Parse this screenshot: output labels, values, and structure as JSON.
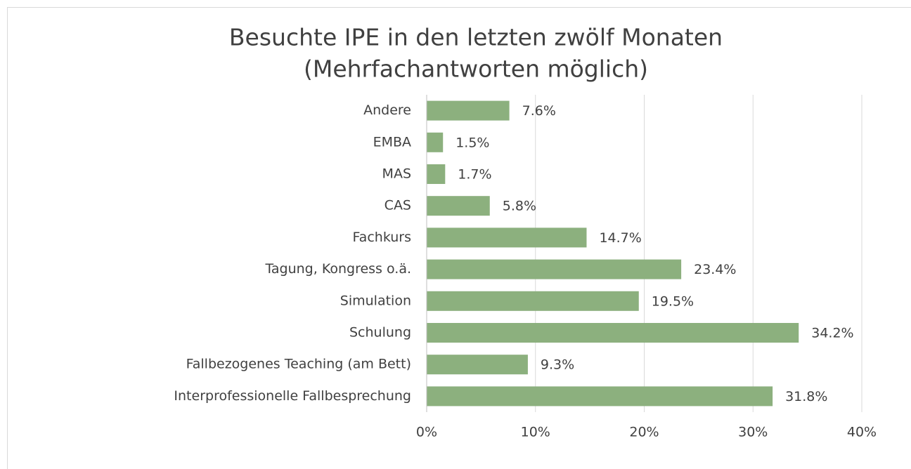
{
  "chart_data": {
    "type": "bar",
    "orientation": "horizontal",
    "title": [
      "Besuchte IPE in den letzten zwölf Monaten",
      "(Mehrfachantworten möglich)"
    ],
    "categories": [
      "Andere",
      "EMBA",
      "MAS",
      "CAS",
      "Fachkurs",
      "Tagung, Kongress o.ä.",
      "Simulation",
      "Schulung",
      "Fallbezogenes Teaching (am Bett)",
      "Interprofessionelle Fallbesprechung"
    ],
    "values": [
      7.6,
      1.5,
      1.7,
      5.8,
      14.7,
      23.4,
      19.5,
      34.2,
      9.3,
      31.8
    ],
    "value_labels": [
      "7.6%",
      "1.5%",
      "1.7%",
      "5.8%",
      "14.7%",
      "23.4%",
      "19.5%",
      "34.2%",
      "9.3%",
      "31.8%"
    ],
    "color": "#8cb07e",
    "xlim": [
      0,
      40
    ],
    "xticks": [
      {
        "value": 0,
        "label": "0%"
      },
      {
        "value": 10,
        "label": "10%"
      },
      {
        "value": 20,
        "label": "20%"
      },
      {
        "value": 30,
        "label": "30%"
      },
      {
        "value": 40,
        "label": "40%"
      }
    ],
    "grid": true
  }
}
